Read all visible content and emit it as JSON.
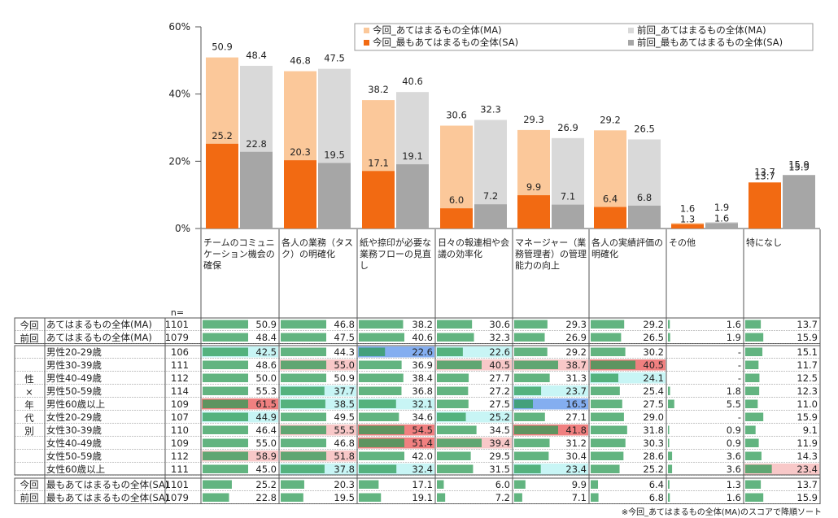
{
  "chart_data": {
    "type": "bar",
    "y_axis": {
      "ylim": [
        0,
        60
      ],
      "ticks": [
        "0%",
        "20%",
        "40%",
        "60%"
      ],
      "tick_values": [
        0,
        20,
        40,
        60
      ]
    },
    "legend": [
      {
        "name": "今回_あてはまるもの全体(MA)",
        "color": "#fbc89a"
      },
      {
        "name": "前回_あてはまるもの全体(MA)",
        "color": "#d9d9d9"
      },
      {
        "name": "今回_最もあてはまるもの全体(SA)",
        "color": "#f26a12"
      },
      {
        "name": "前回_最もあてはまるもの全体(SA)",
        "color": "#a6a6a6"
      }
    ],
    "categories": [
      "チームのコミュニケーション機会の確保",
      "各人の業務（タスク）の明確化",
      "紙や捺印が必要な業務フローの見直し",
      "日々の報連相や会議の効率化",
      "マネージャー（業務管理者）の管理能力の向上",
      "各人の実績評価の明確化",
      "その他",
      "特になし"
    ],
    "series": [
      {
        "name": "今回_あてはまるもの全体(MA)",
        "values": [
          50.9,
          46.8,
          38.2,
          30.6,
          29.3,
          29.2,
          1.6,
          13.7
        ]
      },
      {
        "name": "前回_あてはまるもの全体(MA)",
        "values": [
          48.4,
          47.5,
          40.6,
          32.3,
          26.9,
          26.5,
          1.9,
          15.9
        ]
      },
      {
        "name": "今回_最もあてはまるもの全体(SA)",
        "values": [
          25.2,
          20.3,
          17.1,
          6.0,
          9.9,
          6.4,
          1.3,
          13.7
        ]
      },
      {
        "name": "前回_最もあてはまるもの全体(SA)",
        "values": [
          22.8,
          19.5,
          19.1,
          7.2,
          7.1,
          6.8,
          1.6,
          15.9
        ]
      }
    ],
    "table": {
      "n_header": "n=",
      "group_labels": {
        "konkai": "今回",
        "zenkai": "前回",
        "sex_age": "性×年代別"
      },
      "rows": [
        {
          "group": "今回",
          "label": "あてはまるもの全体(MA)",
          "n": "1101",
          "values": [
            "50.9",
            "46.8",
            "38.2",
            "30.6",
            "29.3",
            "29.2",
            "1.6",
            "13.7"
          ]
        },
        {
          "group": "前回",
          "label": "あてはまるもの全体(MA)",
          "n": "1079",
          "values": [
            "48.4",
            "47.5",
            "40.6",
            "32.3",
            "26.9",
            "26.5",
            "1.9",
            "15.9"
          ]
        },
        {
          "group": "性×年代別",
          "label": "男性20-29歳",
          "n": "106",
          "values": [
            "42.5",
            "44.3",
            "22.6",
            "22.6",
            "29.2",
            "30.2",
            "-",
            "15.1"
          ],
          "highlights": [
            "cyan",
            null,
            "blue",
            "cyan",
            null,
            null,
            null,
            null
          ]
        },
        {
          "group": "性×年代別",
          "label": "男性30-39歳",
          "n": "111",
          "values": [
            "48.6",
            "55.0",
            "36.9",
            "40.5",
            "38.7",
            "40.5",
            "-",
            "11.7"
          ],
          "highlights": [
            null,
            "pink",
            null,
            "pink",
            "pink",
            "red",
            null,
            null
          ]
        },
        {
          "group": "性×年代別",
          "label": "男性40-49歳",
          "n": "112",
          "values": [
            "50.0",
            "50.9",
            "38.4",
            "27.7",
            "31.3",
            "24.1",
            "-",
            "12.5"
          ],
          "highlights": [
            null,
            null,
            null,
            null,
            null,
            "cyan",
            null,
            null
          ]
        },
        {
          "group": "性×年代別",
          "label": "男性50-59歳",
          "n": "114",
          "values": [
            "55.3",
            "37.7",
            "36.8",
            "27.2",
            "23.7",
            "25.4",
            "1.8",
            "12.3"
          ],
          "highlights": [
            null,
            "cyan",
            null,
            null,
            "cyan",
            null,
            null,
            null
          ]
        },
        {
          "group": "性×年代別",
          "label": "男性60歳以上",
          "n": "109",
          "values": [
            "61.5",
            "38.5",
            "32.1",
            "27.5",
            "16.5",
            "27.5",
            "5.5",
            "11.0"
          ],
          "highlights": [
            "red",
            "cyan",
            "cyan",
            null,
            "blue",
            null,
            null,
            null
          ]
        },
        {
          "group": "性×年代別",
          "label": "女性20-29歳",
          "n": "107",
          "values": [
            "44.9",
            "49.5",
            "34.6",
            "25.2",
            "27.1",
            "29.0",
            "-",
            "15.9"
          ],
          "highlights": [
            "cyan",
            null,
            null,
            "cyan",
            null,
            null,
            null,
            null
          ]
        },
        {
          "group": "性×年代別",
          "label": "女性30-39歳",
          "n": "110",
          "values": [
            "46.4",
            "55.5",
            "54.5",
            "34.5",
            "41.8",
            "31.8",
            "0.9",
            "9.1"
          ],
          "highlights": [
            null,
            "pink",
            "red",
            null,
            "red",
            null,
            null,
            null
          ]
        },
        {
          "group": "性×年代別",
          "label": "女性40-49歳",
          "n": "109",
          "values": [
            "55.0",
            "46.8",
            "51.4",
            "39.4",
            "31.2",
            "30.3",
            "0.9",
            "11.9"
          ],
          "highlights": [
            null,
            null,
            "red",
            "pink",
            null,
            null,
            null,
            null
          ]
        },
        {
          "group": "性×年代別",
          "label": "女性50-59歳",
          "n": "112",
          "values": [
            "58.9",
            "51.8",
            "42.0",
            "29.5",
            "30.4",
            "28.6",
            "3.6",
            "14.3"
          ],
          "highlights": [
            "pink",
            "pink",
            null,
            null,
            null,
            null,
            null,
            null
          ]
        },
        {
          "group": "性×年代別",
          "label": "女性60歳以上",
          "n": "111",
          "values": [
            "45.0",
            "37.8",
            "32.4",
            "31.5",
            "23.4",
            "25.2",
            "3.6",
            "23.4"
          ],
          "highlights": [
            null,
            "cyan",
            "cyan",
            null,
            "cyan",
            null,
            null,
            "pink"
          ]
        },
        {
          "group": "今回",
          "label": "最もあてはまるもの全体(SA)",
          "n": "1101",
          "values": [
            "25.2",
            "20.3",
            "17.1",
            "6.0",
            "9.9",
            "6.4",
            "1.3",
            "13.7"
          ]
        },
        {
          "group": "前回",
          "label": "最もあてはまるもの全体(SA)",
          "n": "1079",
          "values": [
            "22.8",
            "19.5",
            "19.1",
            "7.2",
            "7.1",
            "6.8",
            "1.6",
            "15.9"
          ]
        }
      ]
    },
    "highlight_colors": {
      "red": "#f08080",
      "pink": "#f8c8c8",
      "cyan": "#c8f5f5",
      "blue": "#84aef0"
    },
    "cell_bar_color": "#2e9b55",
    "note": "※今回_あてはまるもの全体(MA)のスコアで降順ソート"
  }
}
